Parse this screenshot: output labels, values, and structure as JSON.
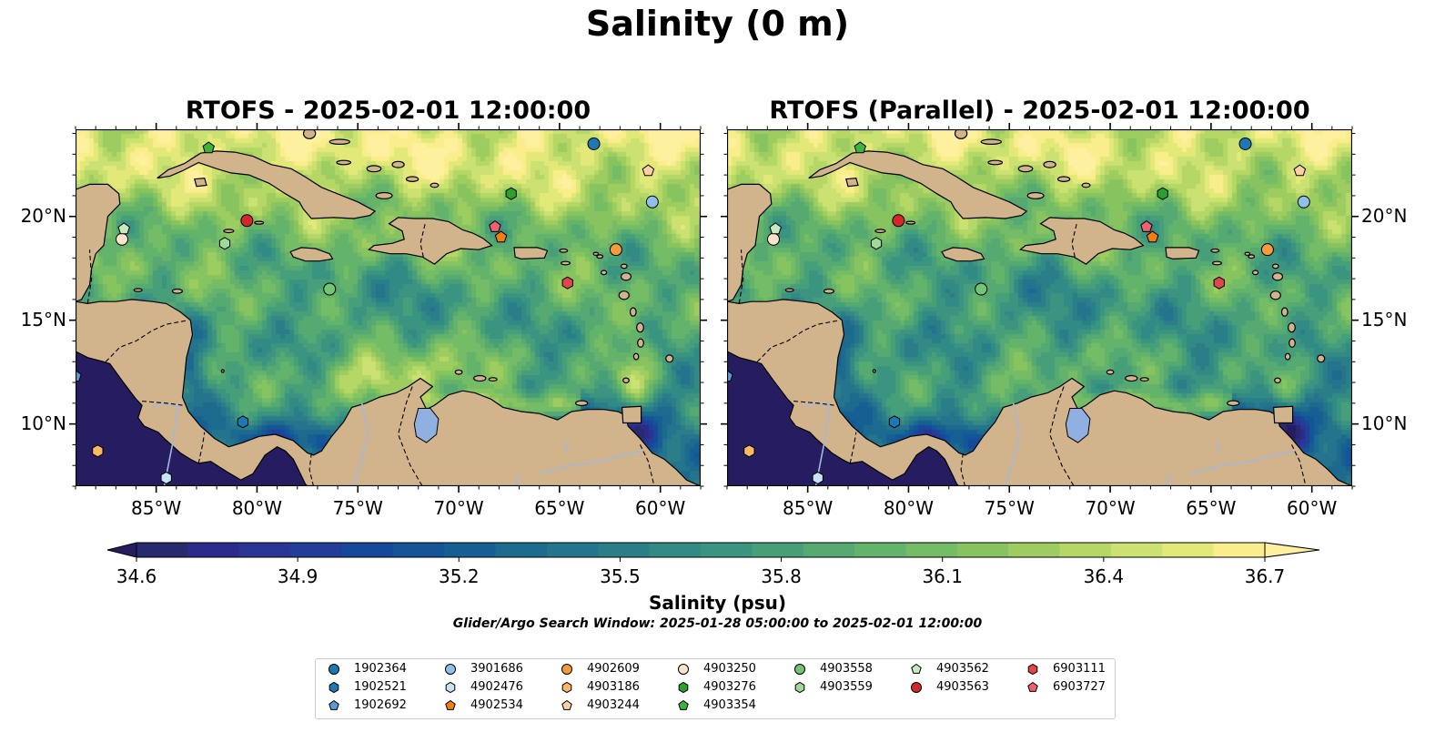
{
  "suptitle": "Salinity (0 m)",
  "panels": [
    {
      "title": "RTOFS - 2025-02-01 12:00:00",
      "variant": "rtofs"
    },
    {
      "title": "RTOFS (Parallel) - 2025-02-01 12:00:00",
      "variant": "parallel"
    }
  ],
  "map_extent": {
    "lon_min": -89.0,
    "lon_max": -58.0,
    "lat_min": 7.0,
    "lat_max": 24.2
  },
  "lon_ticks": [
    {
      "value": -85,
      "label": "85°W"
    },
    {
      "value": -80,
      "label": "80°W"
    },
    {
      "value": -75,
      "label": "75°W"
    },
    {
      "value": -70,
      "label": "70°W"
    },
    {
      "value": -65,
      "label": "65°W"
    },
    {
      "value": -60,
      "label": "60°W"
    }
  ],
  "lat_ticks": [
    {
      "value": 10,
      "label": "10°N"
    },
    {
      "value": 15,
      "label": "15°N"
    },
    {
      "value": 20,
      "label": "20°N"
    }
  ],
  "colorbar": {
    "label": "Salinity (psu)",
    "min": 34.6,
    "max": 36.7,
    "ticks": [
      "34.6",
      "34.9",
      "35.2",
      "35.5",
      "35.8",
      "36.1",
      "36.4",
      "36.7"
    ],
    "colors": [
      "#282a6e",
      "#2c2a8a",
      "#2a3494",
      "#223e98",
      "#17499a",
      "#135597",
      "#155f93",
      "#1d6a8f",
      "#23748c",
      "#2a7e88",
      "#328a84",
      "#3b947f",
      "#479f79",
      "#55a971",
      "#63b36b",
      "#74bc65",
      "#87c460",
      "#9dcd60",
      "#b4d766",
      "#cbe172",
      "#e2e979",
      "#faed8c"
    ],
    "under_color": "#261d60",
    "over_color": "#fdf1a0"
  },
  "subtitle_note": "Glider/Argo Search Window: 2025-01-28 05:00:00 to 2025-02-01 12:00:00",
  "colors": {
    "land": "#d2b48c",
    "lake": "#8fb0e0",
    "river": "#a6b8d8",
    "deep_pacific": "#261d60"
  },
  "floats": [
    {
      "id": "1902364",
      "marker": "circle",
      "color": "#1f77b4",
      "lon": -63.3,
      "lat": 23.5
    },
    {
      "id": "1902521",
      "marker": "hexagon",
      "color": "#1f77b4",
      "lon": -80.7,
      "lat": 10.1
    },
    {
      "id": "1902692",
      "marker": "pentagon",
      "color": "#5b9bd5",
      "lon": -89.0,
      "lat": 12.3
    },
    {
      "id": "3901686",
      "marker": "circle",
      "color": "#8fc1e8",
      "lon": -60.4,
      "lat": 20.7
    },
    {
      "id": "4902476",
      "marker": "hexagon",
      "color": "#c6e4f5",
      "lon": -84.5,
      "lat": 7.4
    },
    {
      "id": "4902534",
      "marker": "pentagon",
      "color": "#f47d12",
      "lon": -67.9,
      "lat": 19.0
    },
    {
      "id": "4902609",
      "marker": "circle",
      "color": "#f59b3c",
      "lon": -62.2,
      "lat": 18.4
    },
    {
      "id": "4903186",
      "marker": "hexagon",
      "color": "#fbb867",
      "lon": -87.9,
      "lat": 8.7
    },
    {
      "id": "4903244",
      "marker": "pentagon",
      "color": "#fdd0a2",
      "lon": -60.6,
      "lat": 22.2
    },
    {
      "id": "4903250",
      "marker": "circle",
      "color": "#fde3c8",
      "lon": -86.7,
      "lat": 18.9
    },
    {
      "id": "4903276",
      "marker": "hexagon",
      "color": "#2ca02c",
      "lon": -67.4,
      "lat": 21.1
    },
    {
      "id": "4903354",
      "marker": "pentagon",
      "color": "#3cb43c",
      "lon": -82.4,
      "lat": 23.3
    },
    {
      "id": "4903558",
      "marker": "circle",
      "color": "#74c476",
      "lon": -76.4,
      "lat": 16.5
    },
    {
      "id": "4903559",
      "marker": "hexagon",
      "color": "#a1d99b",
      "lon": -81.6,
      "lat": 18.7
    },
    {
      "id": "4903562",
      "marker": "pentagon",
      "color": "#c7e9c0",
      "lon": -86.6,
      "lat": 19.4
    },
    {
      "id": "4903563",
      "marker": "circle",
      "color": "#d62728",
      "lon": -80.5,
      "lat": 19.8
    },
    {
      "id": "6903111",
      "marker": "hexagon",
      "color": "#e0474c",
      "lon": -64.6,
      "lat": 16.8
    },
    {
      "id": "6903727",
      "marker": "pentagon",
      "color": "#f06070",
      "lon": -68.2,
      "lat": 19.5
    }
  ],
  "legend_columns": [
    [
      "1902364",
      "1902521",
      "1902692"
    ],
    [
      "3901686",
      "4902476",
      "4902534"
    ],
    [
      "4902609",
      "4903186",
      "4903244"
    ],
    [
      "4903250",
      "4903276",
      "4903354"
    ],
    [
      "4903558",
      "4903559"
    ],
    [
      "4903562",
      "4903563"
    ],
    [
      "6903111",
      "6903727"
    ]
  ]
}
